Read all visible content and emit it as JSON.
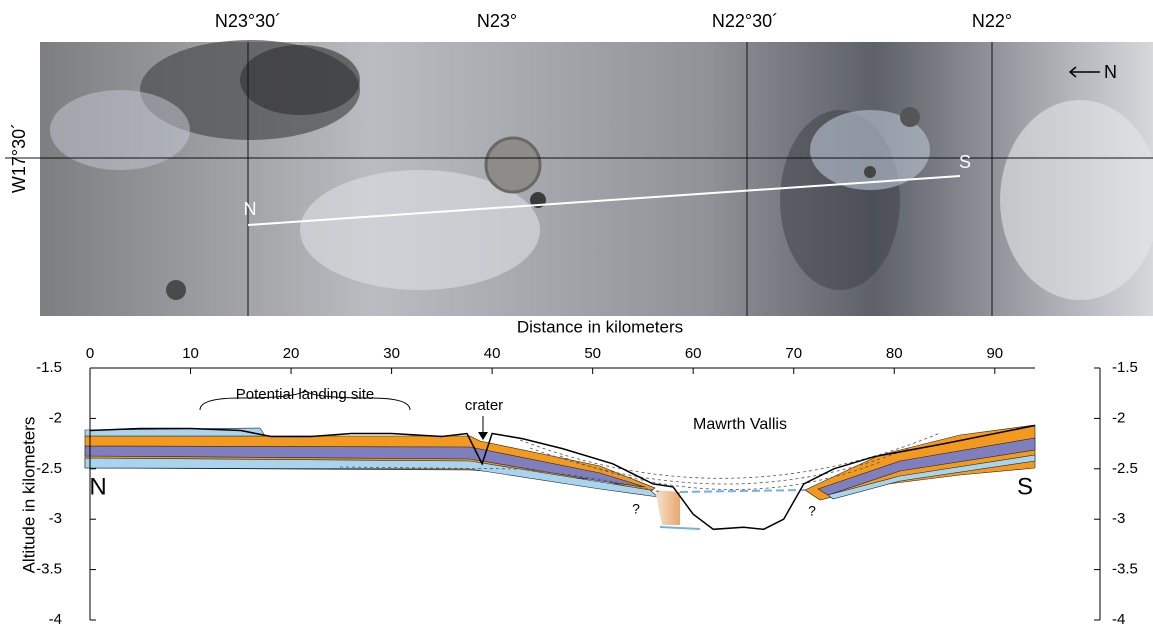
{
  "map": {
    "lat_labels": [
      "N23°30´",
      "N23°",
      "N22°30´",
      "N22°"
    ],
    "lon_label": "W17°30´",
    "north_label": "N",
    "profile_start": "N",
    "profile_end": "S"
  },
  "chart_data": {
    "type": "line",
    "xlabel": "Distance in kilometers",
    "ylabel": "Altitude in kilometers",
    "annotations": [
      "Potential landing site",
      "crater",
      "Mawrth Vallis",
      "N",
      "S",
      "?",
      "?"
    ],
    "x": [
      0,
      5,
      10,
      15,
      18,
      22,
      26,
      30,
      35,
      37.5,
      39,
      40,
      43,
      47,
      52,
      56,
      58,
      60,
      62,
      65,
      67,
      69,
      71,
      74,
      78,
      85,
      94
    ],
    "values": [
      -2.12,
      -2.1,
      -2.1,
      -2.12,
      -2.18,
      -2.18,
      -2.15,
      -2.15,
      -2.18,
      -2.15,
      -2.45,
      -2.15,
      -2.2,
      -2.3,
      -2.45,
      -2.65,
      -2.68,
      -2.95,
      -3.1,
      -3.08,
      -3.1,
      -3.0,
      -2.65,
      -2.5,
      -2.38,
      -2.25,
      -2.07
    ],
    "color": "#000000",
    "xlim": [
      0,
      94
    ],
    "xticks": [
      0,
      10,
      20,
      30,
      40,
      50,
      60,
      70,
      80,
      90
    ],
    "ylim": [
      -4,
      -1.5
    ],
    "yticks": [
      -1.5,
      -2,
      -2.5,
      -3,
      -3.5,
      -4
    ],
    "y2lim": [
      -4,
      -1.5
    ],
    "y2ticks": [
      -1.5,
      -2,
      -2.5,
      -3,
      -3.5,
      -4
    ]
  }
}
